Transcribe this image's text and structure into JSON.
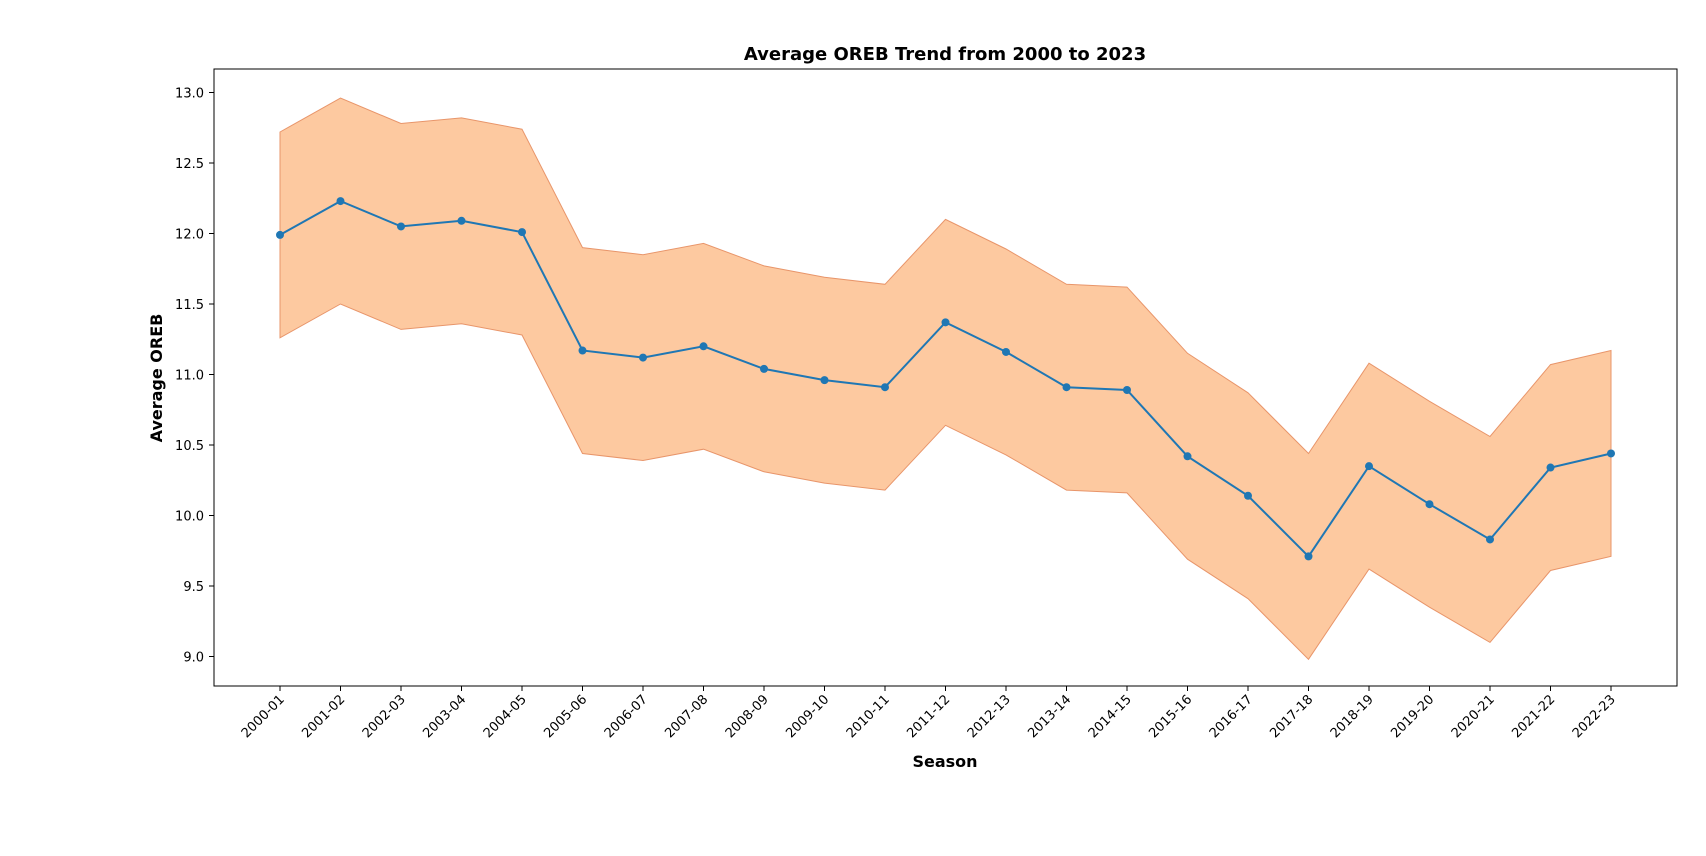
{
  "chart_data": {
    "type": "line",
    "title": "Average OREB Trend from 2000 to 2023",
    "xlabel": "Season",
    "ylabel": "Average OREB",
    "ylim": [
      8.8,
      13.17
    ],
    "yticks": [
      "9.0",
      "9.5",
      "10.0",
      "10.5",
      "11.0",
      "11.5",
      "12.0",
      "12.5",
      "13.0"
    ],
    "grid": false,
    "line_color": "#1f77b4",
    "band_fill_color": "#fdc9a0",
    "band_edge_color": "#e8956a",
    "categories": [
      "2000-01",
      "2001-02",
      "2002-03",
      "2003-04",
      "2004-05",
      "2005-06",
      "2006-07",
      "2007-08",
      "2008-09",
      "2009-10",
      "2010-11",
      "2011-12",
      "2012-13",
      "2013-14",
      "2014-15",
      "2015-16",
      "2016-17",
      "2017-18",
      "2018-19",
      "2019-20",
      "2020-21",
      "2021-22",
      "2022-23"
    ],
    "series": [
      {
        "values": [
          11.99,
          12.23,
          12.05,
          12.09,
          12.01,
          11.17,
          11.12,
          11.2,
          11.04,
          10.96,
          10.91,
          11.37,
          11.16,
          10.91,
          10.89,
          10.42,
          10.14,
          9.71,
          10.35,
          10.08,
          9.83,
          10.34,
          10.44
        ],
        "upper": [
          12.72,
          12.96,
          12.78,
          12.82,
          12.74,
          11.9,
          11.85,
          11.93,
          11.77,
          11.69,
          11.64,
          12.1,
          11.89,
          11.64,
          11.62,
          11.15,
          10.87,
          10.44,
          11.08,
          10.81,
          10.56,
          11.07,
          11.17
        ],
        "lower": [
          11.26,
          11.5,
          11.32,
          11.36,
          11.28,
          10.44,
          10.39,
          10.47,
          10.31,
          10.23,
          10.18,
          10.64,
          10.43,
          10.18,
          10.16,
          9.69,
          9.41,
          8.98,
          9.62,
          9.35,
          9.1,
          9.61,
          9.71
        ]
      }
    ]
  }
}
